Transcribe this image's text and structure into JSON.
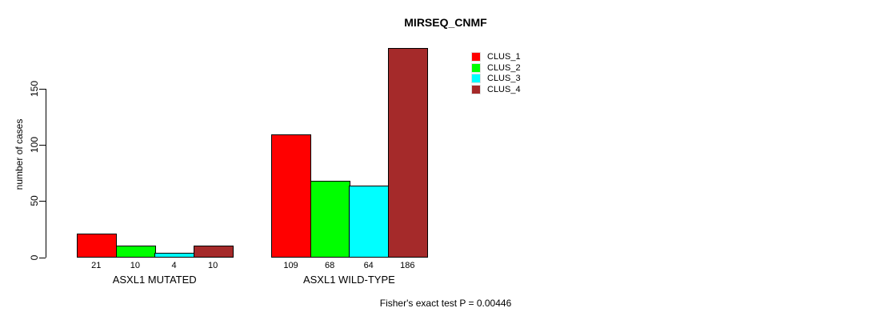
{
  "chart_data": {
    "type": "bar",
    "title": "MIRSEQ_CNMF",
    "ylabel": "number of cases",
    "xlabel": "",
    "categories": [
      "ASXL1 MUTATED",
      "ASXL1 WILD-TYPE"
    ],
    "series": [
      {
        "name": "CLUS_1",
        "color": "#ff0000",
        "values": [
          21,
          109
        ]
      },
      {
        "name": "CLUS_2",
        "color": "#00ff00",
        "values": [
          10,
          68
        ]
      },
      {
        "name": "CLUS_3",
        "color": "#00ffff",
        "values": [
          4,
          64
        ]
      },
      {
        "name": "CLUS_4",
        "color": "#a52a2a",
        "values": [
          10,
          186
        ]
      }
    ],
    "bar_value_labels": [
      [
        21,
        10,
        4,
        10
      ],
      [
        109,
        68,
        64,
        186
      ]
    ],
    "yticks": [
      0,
      50,
      100,
      150
    ],
    "ylim": [
      0,
      186
    ],
    "grid": false,
    "legend_position": "top-right",
    "legend_entries": [
      "CLUS_1",
      "CLUS_2",
      "CLUS_3",
      "CLUS_4"
    ],
    "annotation": "Fisher's exact test P = 0.00446"
  }
}
